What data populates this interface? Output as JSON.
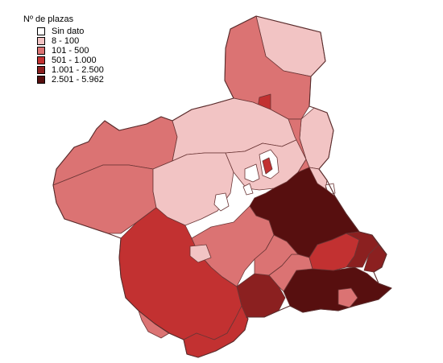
{
  "legend": {
    "title": "Nº de plazas",
    "items": [
      {
        "label": "Sin dato",
        "color": "#ffffff"
      },
      {
        "label": "8 - 100",
        "color": "#f2c4c4"
      },
      {
        "label": "101 - 500",
        "color": "#db7373"
      },
      {
        "label": "501 - 1.000",
        "color": "#c23131"
      },
      {
        "label": "1.001 - 2.500",
        "color": "#8b2020"
      },
      {
        "label": "2.501 - 5.962",
        "color": "#570f0f"
      }
    ]
  }
}
